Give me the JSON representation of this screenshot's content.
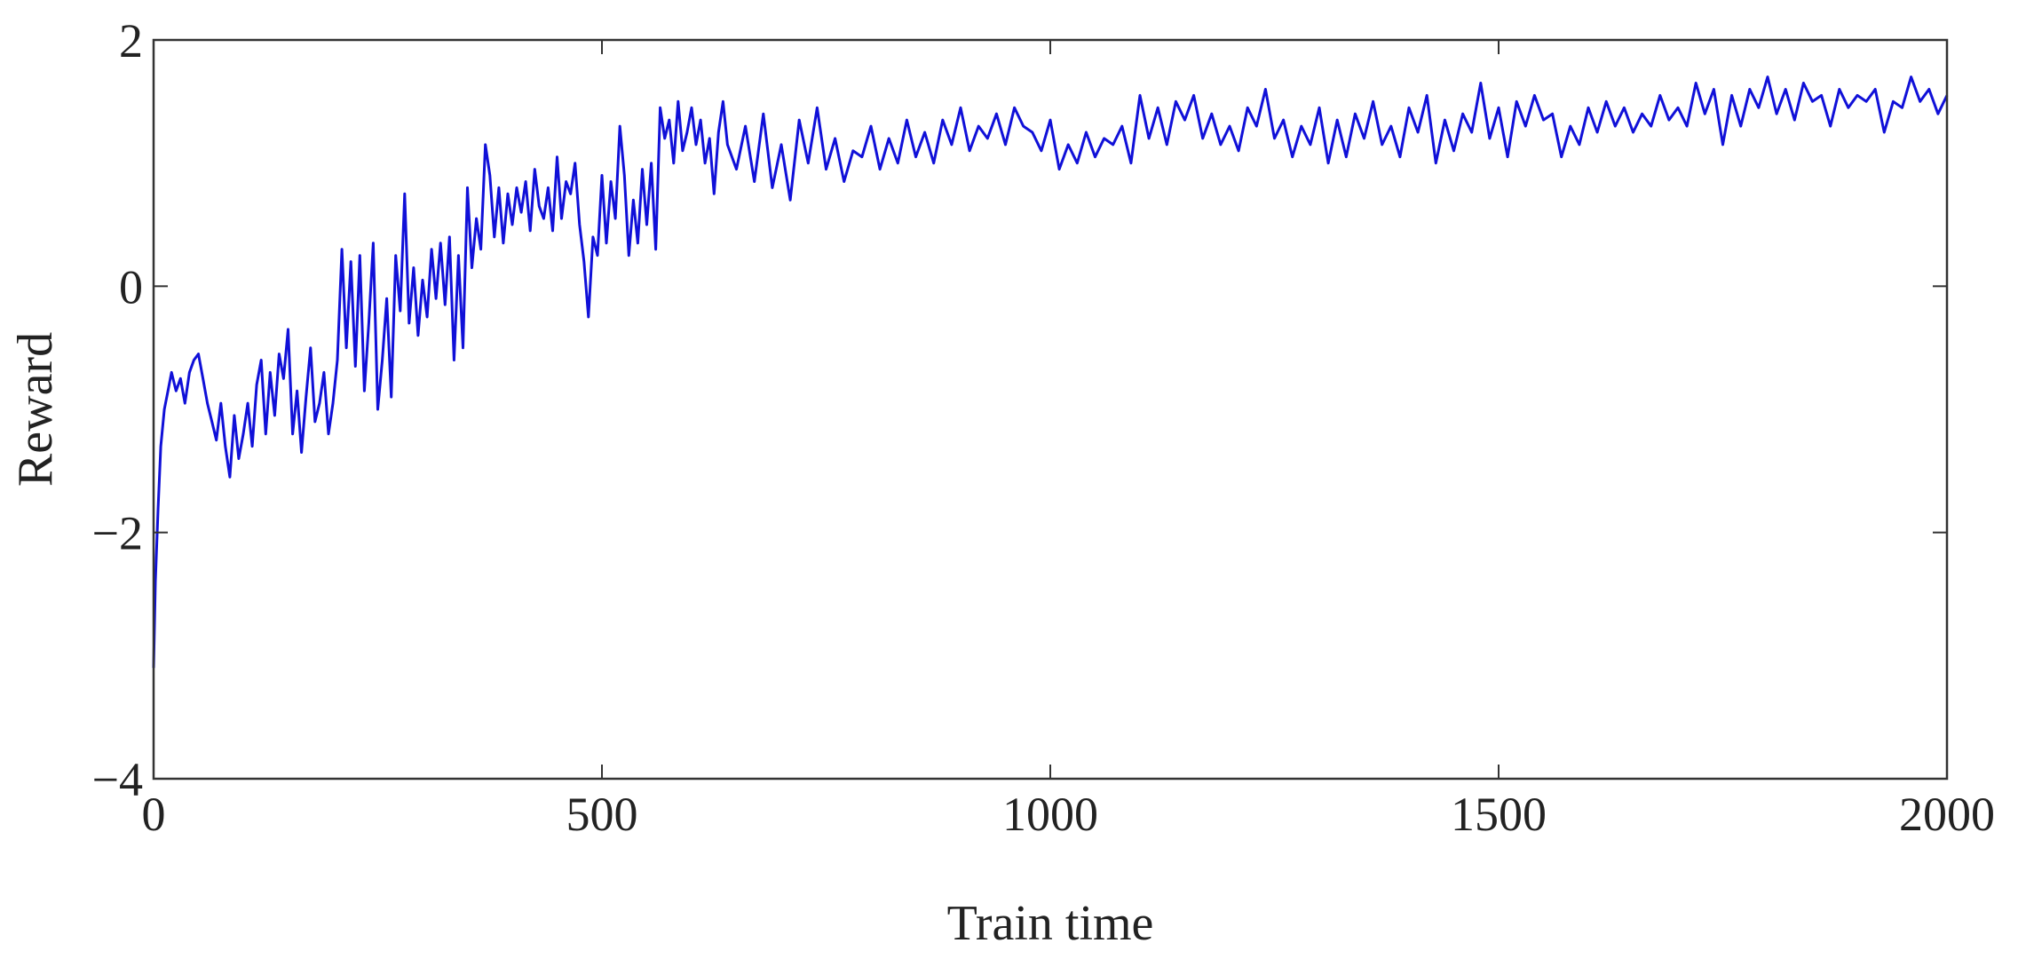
{
  "chart_data": {
    "type": "line",
    "title": "",
    "xlabel": "Train time",
    "ylabel": "Reward",
    "xlim": [
      0,
      2000
    ],
    "ylim": [
      -4,
      2
    ],
    "xticks": [
      0,
      500,
      1000,
      1500,
      2000
    ],
    "yticks": [
      -4,
      -2,
      0,
      2
    ],
    "xtick_labels": [
      "0",
      "500",
      "1000",
      "1500",
      "2000"
    ],
    "ytick_labels": [
      "−4",
      "−2",
      "0",
      "2"
    ],
    "grid": false,
    "legend": "none",
    "series": [
      {
        "color": "#1010d8",
        "x": [
          0,
          2,
          5,
          8,
          12,
          16,
          20,
          25,
          30,
          35,
          40,
          45,
          50,
          55,
          60,
          65,
          70,
          75,
          80,
          85,
          90,
          95,
          100,
          105,
          110,
          115,
          120,
          125,
          130,
          135,
          140,
          145,
          150,
          155,
          160,
          165,
          170,
          175,
          180,
          185,
          190,
          195,
          200,
          205,
          210,
          215,
          220,
          225,
          230,
          235,
          240,
          245,
          250,
          255,
          260,
          265,
          270,
          275,
          280,
          285,
          290,
          295,
          300,
          305,
          310,
          315,
          320,
          325,
          330,
          335,
          340,
          345,
          350,
          355,
          360,
          365,
          370,
          375,
          380,
          385,
          390,
          395,
          400,
          405,
          410,
          415,
          420,
          425,
          430,
          435,
          440,
          445,
          450,
          455,
          460,
          465,
          470,
          475,
          480,
          485,
          490,
          495,
          500,
          505,
          510,
          515,
          520,
          525,
          530,
          535,
          540,
          545,
          550,
          555,
          560,
          565,
          570,
          575,
          580,
          585,
          590,
          595,
          600,
          605,
          610,
          615,
          620,
          625,
          630,
          635,
          640,
          650,
          660,
          670,
          680,
          690,
          700,
          710,
          720,
          730,
          740,
          750,
          760,
          770,
          780,
          790,
          800,
          810,
          820,
          830,
          840,
          850,
          860,
          870,
          880,
          890,
          900,
          910,
          920,
          930,
          940,
          950,
          960,
          970,
          980,
          990,
          1000,
          1010,
          1020,
          1030,
          1040,
          1050,
          1060,
          1070,
          1080,
          1090,
          1100,
          1110,
          1120,
          1130,
          1140,
          1150,
          1160,
          1170,
          1180,
          1190,
          1200,
          1210,
          1220,
          1230,
          1240,
          1250,
          1260,
          1270,
          1280,
          1290,
          1300,
          1310,
          1320,
          1330,
          1340,
          1350,
          1360,
          1370,
          1380,
          1390,
          1400,
          1410,
          1420,
          1430,
          1440,
          1450,
          1460,
          1470,
          1480,
          1490,
          1500,
          1510,
          1520,
          1530,
          1540,
          1550,
          1560,
          1570,
          1580,
          1590,
          1600,
          1610,
          1620,
          1630,
          1640,
          1650,
          1660,
          1670,
          1680,
          1690,
          1700,
          1710,
          1720,
          1730,
          1740,
          1750,
          1760,
          1770,
          1780,
          1790,
          1800,
          1810,
          1820,
          1830,
          1840,
          1850,
          1860,
          1870,
          1880,
          1890,
          1900,
          1910,
          1920,
          1930,
          1940,
          1950,
          1960,
          1970,
          1980,
          1990,
          2000
        ],
        "y": [
          -3.1,
          -2.4,
          -1.8,
          -1.3,
          -1.0,
          -0.85,
          -0.7,
          -0.85,
          -0.75,
          -0.95,
          -0.7,
          -0.6,
          -0.55,
          -0.75,
          -0.95,
          -1.1,
          -1.25,
          -0.95,
          -1.3,
          -1.55,
          -1.05,
          -1.4,
          -1.2,
          -0.95,
          -1.3,
          -0.8,
          -0.6,
          -1.2,
          -0.7,
          -1.05,
          -0.55,
          -0.75,
          -0.35,
          -1.2,
          -0.85,
          -1.35,
          -0.9,
          -0.5,
          -1.1,
          -0.95,
          -0.7,
          -1.2,
          -0.95,
          -0.6,
          0.3,
          -0.5,
          0.2,
          -0.65,
          0.25,
          -0.85,
          -0.3,
          0.35,
          -1.0,
          -0.6,
          -0.1,
          -0.9,
          0.25,
          -0.2,
          0.75,
          -0.3,
          0.15,
          -0.4,
          0.05,
          -0.25,
          0.3,
          -0.1,
          0.35,
          -0.15,
          0.4,
          -0.6,
          0.25,
          -0.5,
          0.8,
          0.15,
          0.55,
          0.3,
          1.15,
          0.9,
          0.4,
          0.8,
          0.35,
          0.75,
          0.5,
          0.8,
          0.6,
          0.85,
          0.45,
          0.95,
          0.65,
          0.55,
          0.8,
          0.45,
          1.05,
          0.55,
          0.85,
          0.75,
          1.0,
          0.5,
          0.2,
          -0.25,
          0.4,
          0.25,
          0.9,
          0.35,
          0.85,
          0.55,
          1.3,
          0.9,
          0.25,
          0.7,
          0.35,
          0.95,
          0.5,
          1.0,
          0.3,
          1.45,
          1.2,
          1.35,
          1.0,
          1.5,
          1.1,
          1.25,
          1.45,
          1.15,
          1.35,
          1.0,
          1.2,
          0.75,
          1.25,
          1.5,
          1.15,
          0.95,
          1.3,
          0.85,
          1.4,
          0.8,
          1.15,
          0.7,
          1.35,
          1.0,
          1.45,
          0.95,
          1.2,
          0.85,
          1.1,
          1.05,
          1.3,
          0.95,
          1.2,
          1.0,
          1.35,
          1.05,
          1.25,
          1.0,
          1.35,
          1.15,
          1.45,
          1.1,
          1.3,
          1.2,
          1.4,
          1.15,
          1.45,
          1.3,
          1.25,
          1.1,
          1.35,
          0.95,
          1.15,
          1.0,
          1.25,
          1.05,
          1.2,
          1.15,
          1.3,
          1.0,
          1.55,
          1.2,
          1.45,
          1.15,
          1.5,
          1.35,
          1.55,
          1.2,
          1.4,
          1.15,
          1.3,
          1.1,
          1.45,
          1.3,
          1.6,
          1.2,
          1.35,
          1.05,
          1.3,
          1.15,
          1.45,
          1.0,
          1.35,
          1.05,
          1.4,
          1.2,
          1.5,
          1.15,
          1.3,
          1.05,
          1.45,
          1.25,
          1.55,
          1.0,
          1.35,
          1.1,
          1.4,
          1.25,
          1.65,
          1.2,
          1.45,
          1.05,
          1.5,
          1.3,
          1.55,
          1.35,
          1.4,
          1.05,
          1.3,
          1.15,
          1.45,
          1.25,
          1.5,
          1.3,
          1.45,
          1.25,
          1.4,
          1.3,
          1.55,
          1.35,
          1.45,
          1.3,
          1.65,
          1.4,
          1.6,
          1.15,
          1.55,
          1.3,
          1.6,
          1.45,
          1.7,
          1.4,
          1.6,
          1.35,
          1.65,
          1.5,
          1.55,
          1.3,
          1.6,
          1.45,
          1.55,
          1.5,
          1.6,
          1.25,
          1.5,
          1.45,
          1.7,
          1.5,
          1.6,
          1.4,
          1.55
        ]
      }
    ]
  },
  "colors": {
    "line": "#1010d8",
    "axes": "#333333",
    "background": "#ffffff"
  }
}
